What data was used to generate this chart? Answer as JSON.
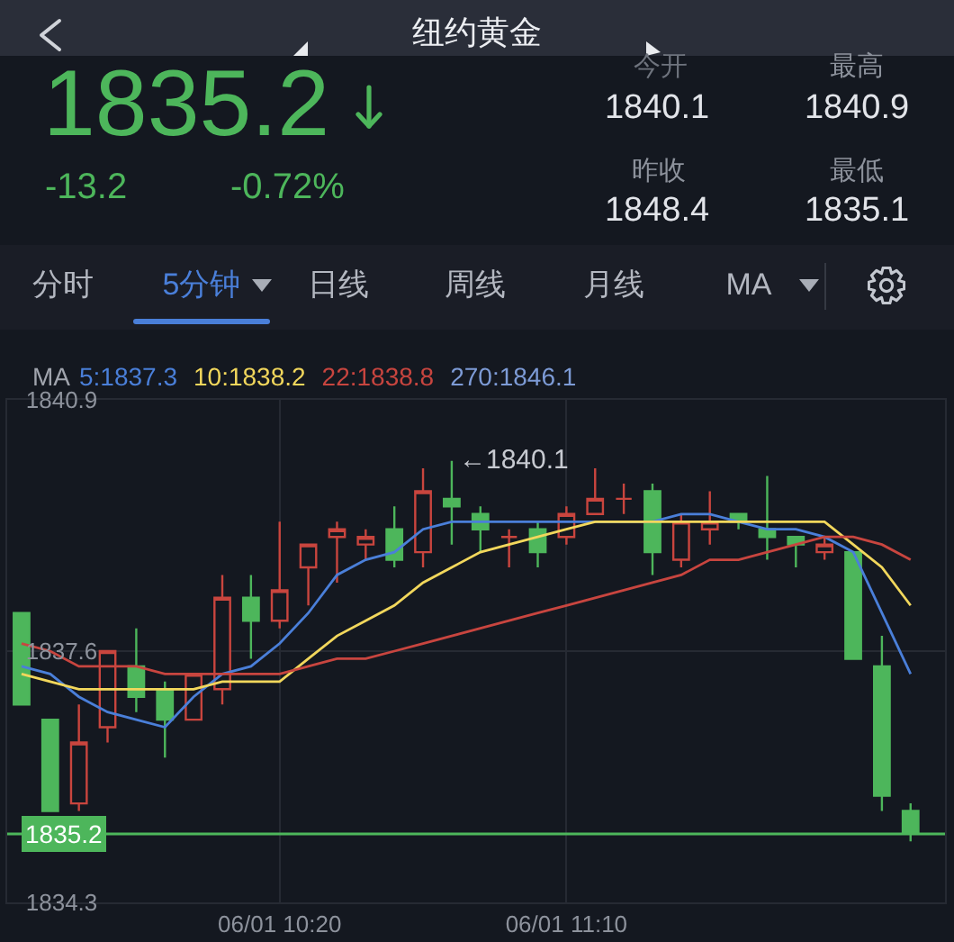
{
  "chart_data": {
    "type": "candlestick",
    "title": "纽约黄金",
    "categories": [
      null,
      null,
      null,
      null,
      null,
      null,
      null,
      null,
      null,
      "06/01 10:20",
      null,
      null,
      null,
      null,
      null,
      null,
      null,
      null,
      null,
      "06/01 11:10",
      null,
      null,
      null,
      null,
      null,
      null,
      null,
      null,
      null,
      null,
      null,
      null
    ],
    "ohlc": [
      [
        1838.1,
        1838.1,
        1836.9,
        1836.9
      ],
      [
        1836.7,
        1836.7,
        1835.5,
        1835.5
      ],
      [
        1835.6,
        1836.9,
        1835.5,
        1836.4
      ],
      [
        1836.6,
        1837.6,
        1836.4,
        1837.6
      ],
      [
        1837.4,
        1837.9,
        1836.8,
        1837.0
      ],
      [
        1837.1,
        1837.2,
        1836.2,
        1836.7
      ],
      [
        1836.7,
        1837.3,
        1836.7,
        1837.3
      ],
      [
        1837.1,
        1838.6,
        1836.9,
        1838.3
      ],
      [
        1838.3,
        1838.6,
        1837.5,
        1838.0
      ],
      [
        1838.0,
        1839.3,
        1837.9,
        1838.4
      ],
      [
        1838.7,
        1839.0,
        1838.2,
        1839.0
      ],
      [
        1839.1,
        1839.3,
        1838.5,
        1839.2
      ],
      [
        1839.0,
        1839.2,
        1838.8,
        1839.1
      ],
      [
        1839.2,
        1839.5,
        1838.7,
        1838.8
      ],
      [
        1838.9,
        1840.0,
        1838.7,
        1839.7
      ],
      [
        1839.6,
        1840.1,
        1839.0,
        1839.5
      ],
      [
        1839.4,
        1839.5,
        1838.9,
        1839.2
      ],
      [
        1839.1,
        1839.2,
        1838.7,
        1839.1
      ],
      [
        1839.2,
        1839.3,
        1838.7,
        1838.9
      ],
      [
        1839.1,
        1839.5,
        1839.0,
        1839.4
      ],
      [
        1839.4,
        1840.0,
        1839.4,
        1839.6
      ],
      [
        1839.6,
        1839.8,
        1839.4,
        1839.6
      ],
      [
        1839.7,
        1839.8,
        1838.6,
        1838.9
      ],
      [
        1838.8,
        1839.4,
        1838.7,
        1839.3
      ],
      [
        1839.2,
        1839.7,
        1839.0,
        1839.3
      ],
      [
        1839.4,
        1839.4,
        1839.2,
        1839.3
      ],
      [
        1839.2,
        1839.9,
        1838.8,
        1839.1
      ],
      [
        1839.1,
        1839.1,
        1838.7,
        1839.0
      ],
      [
        1838.9,
        1839.1,
        1838.8,
        1839.0
      ],
      [
        1838.9,
        1838.9,
        1837.5,
        1837.5
      ],
      [
        1837.4,
        1837.8,
        1835.5,
        1835.7
      ],
      [
        1835.5,
        1835.6,
        1835.1,
        1835.2
      ]
    ],
    "colors": [
      "#4db65b",
      "#4db65b",
      "#c9453e",
      "#c9453e",
      "#4db65b",
      "#4db65b",
      "#c9453e",
      "#c9453e",
      "#4db65b",
      "#c9453e",
      "#c9453e",
      "#c9453e",
      "#c9453e",
      "#4db65b",
      "#c9453e",
      "#4db65b",
      "#4db65b",
      "#c9453e",
      "#4db65b",
      "#c9453e",
      "#c9453e",
      "#c9453e",
      "#4db65b",
      "#c9453e",
      "#c9453e",
      "#4db65b",
      "#4db65b",
      "#4db65b",
      "#c9453e",
      "#4db65b",
      "#4db65b",
      "#4db65b"
    ],
    "series": [
      {
        "type": "line",
        "name": "5:1837.3",
        "color": "#4a7fd9",
        "values": [
          1837.4,
          1837.3,
          1837.0,
          1836.8,
          1836.7,
          1836.6,
          1837.0,
          1837.3,
          1837.4,
          1837.7,
          1838.1,
          1838.6,
          1838.8,
          1838.9,
          1839.2,
          1839.3,
          1839.3,
          1839.3,
          1839.3,
          1839.3,
          1839.3,
          1839.3,
          1839.3,
          1839.4,
          1839.4,
          1839.3,
          1839.2,
          1839.2,
          1839.1,
          1838.9,
          1838.1,
          1837.3
        ]
      },
      {
        "type": "line",
        "name": "10:1838.2",
        "color": "#f2d75c",
        "values": [
          1837.3,
          1837.2,
          1837.1,
          1837.1,
          1837.1,
          1837.1,
          1837.1,
          1837.2,
          1837.2,
          1837.2,
          1837.5,
          1837.8,
          1838.0,
          1838.2,
          1838.5,
          1838.7,
          1838.9,
          1839.0,
          1839.1,
          1839.2,
          1839.3,
          1839.3,
          1839.3,
          1839.3,
          1839.3,
          1839.3,
          1839.3,
          1839.3,
          1839.3,
          1839.0,
          1838.7,
          1838.2
        ]
      },
      {
        "type": "line",
        "name": "22:1838.8",
        "color": "#c8453f",
        "values": [
          1837.7,
          1837.6,
          1837.4,
          1837.4,
          1837.4,
          1837.3,
          1837.3,
          1837.3,
          1837.3,
          1837.3,
          1837.4,
          1837.5,
          1837.5,
          1837.6,
          1837.7,
          1837.8,
          1837.9,
          1838.0,
          1838.1,
          1838.2,
          1838.3,
          1838.4,
          1838.5,
          1838.6,
          1838.8,
          1838.8,
          1838.9,
          1839.0,
          1839.1,
          1839.1,
          1839.0,
          1838.8
        ]
      },
      {
        "type": "line",
        "name": "270:1846.1",
        "color": "#7d9bd6",
        "values": [
          null,
          null,
          null,
          null,
          null,
          null,
          null,
          null,
          null,
          null,
          null,
          null,
          null,
          null,
          null,
          null,
          null,
          null,
          null,
          null,
          null,
          null,
          null,
          null,
          null,
          null,
          null,
          null,
          null,
          null,
          null,
          null
        ]
      }
    ],
    "legend_title": "MA",
    "legend": "top left",
    "ylim": [
      1834.3,
      1840.9
    ],
    "yticks": [
      1840.9,
      1837.6,
      1834.3
    ],
    "grid": true,
    "ref_lines": [
      {
        "axis": "y",
        "value": 1835.2,
        "label": "1835.2",
        "color": "#4db65b"
      }
    ],
    "annotations": [
      "←1840.1",
      "1835.2",
      "-13.2",
      "-0.72%",
      "今开",
      "1840.1",
      "最高",
      "1840.9",
      "昨收",
      "1848.4",
      "最低",
      "1835.1",
      "分时",
      "5分钟",
      "日线",
      "周线",
      "月线",
      "MA"
    ]
  }
}
